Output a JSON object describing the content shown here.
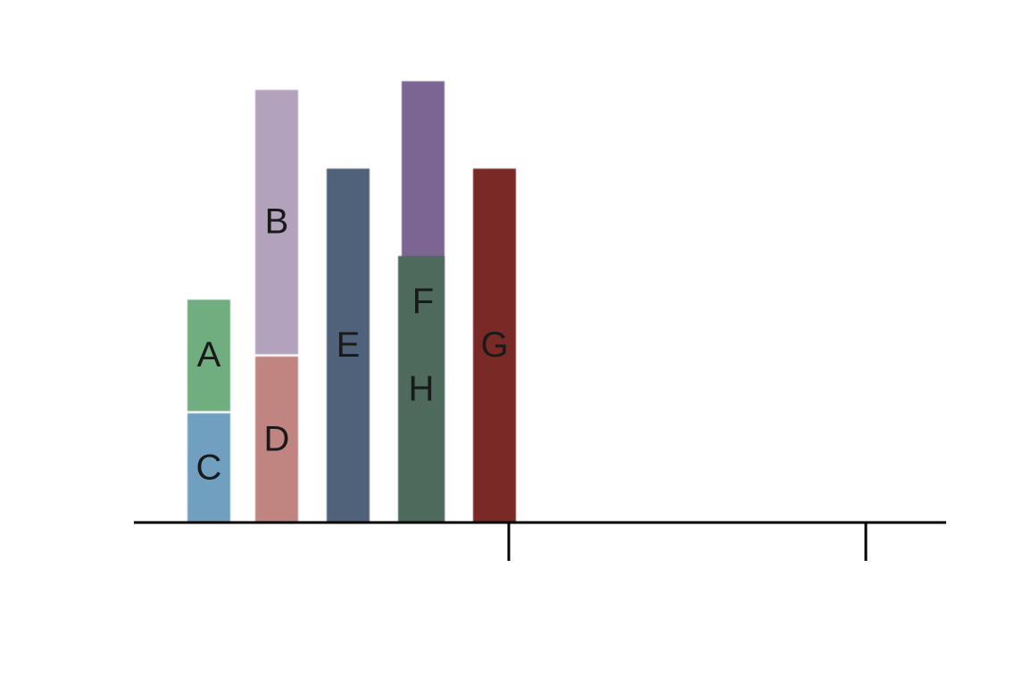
{
  "chart_data": {
    "type": "bar",
    "title": "",
    "xlabel": "",
    "ylabel": "",
    "ylim": [
      0,
      100
    ],
    "xlim": [
      0,
      2.5
    ],
    "x_ticks": [
      1,
      2
    ],
    "grid": false,
    "bars": [
      {
        "label": "C",
        "x_start": 0.1,
        "x_end": 0.22,
        "y_start": 0,
        "y_end": 25,
        "color": "#6f9fc0"
      },
      {
        "label": "A",
        "x_start": 0.1,
        "x_end": 0.22,
        "y_start": 25.5,
        "y_end": 51,
        "color": "#6fae80"
      },
      {
        "label": "D",
        "x_start": 0.29,
        "x_end": 0.41,
        "y_start": 0,
        "y_end": 38,
        "color": "#c08580"
      },
      {
        "label": "B",
        "x_start": 0.29,
        "x_end": 0.41,
        "y_start": 38.5,
        "y_end": 99,
        "color": "#b3a2bb"
      },
      {
        "label": "E",
        "x_start": 0.49,
        "x_end": 0.61,
        "y_start": 0,
        "y_end": 81,
        "color": "#4f6279"
      },
      {
        "label": "F",
        "x_start": 0.7,
        "x_end": 0.82,
        "y_start": 0,
        "y_end": 101,
        "color": "#7b6592"
      },
      {
        "label": "H",
        "x_start": 0.69,
        "x_end": 0.82,
        "y_start": 0,
        "y_end": 61,
        "color": "#4d6b5d"
      },
      {
        "label": "G",
        "x_start": 0.9,
        "x_end": 1.02,
        "y_start": 0,
        "y_end": 81,
        "color": "#7a2a27"
      }
    ]
  }
}
